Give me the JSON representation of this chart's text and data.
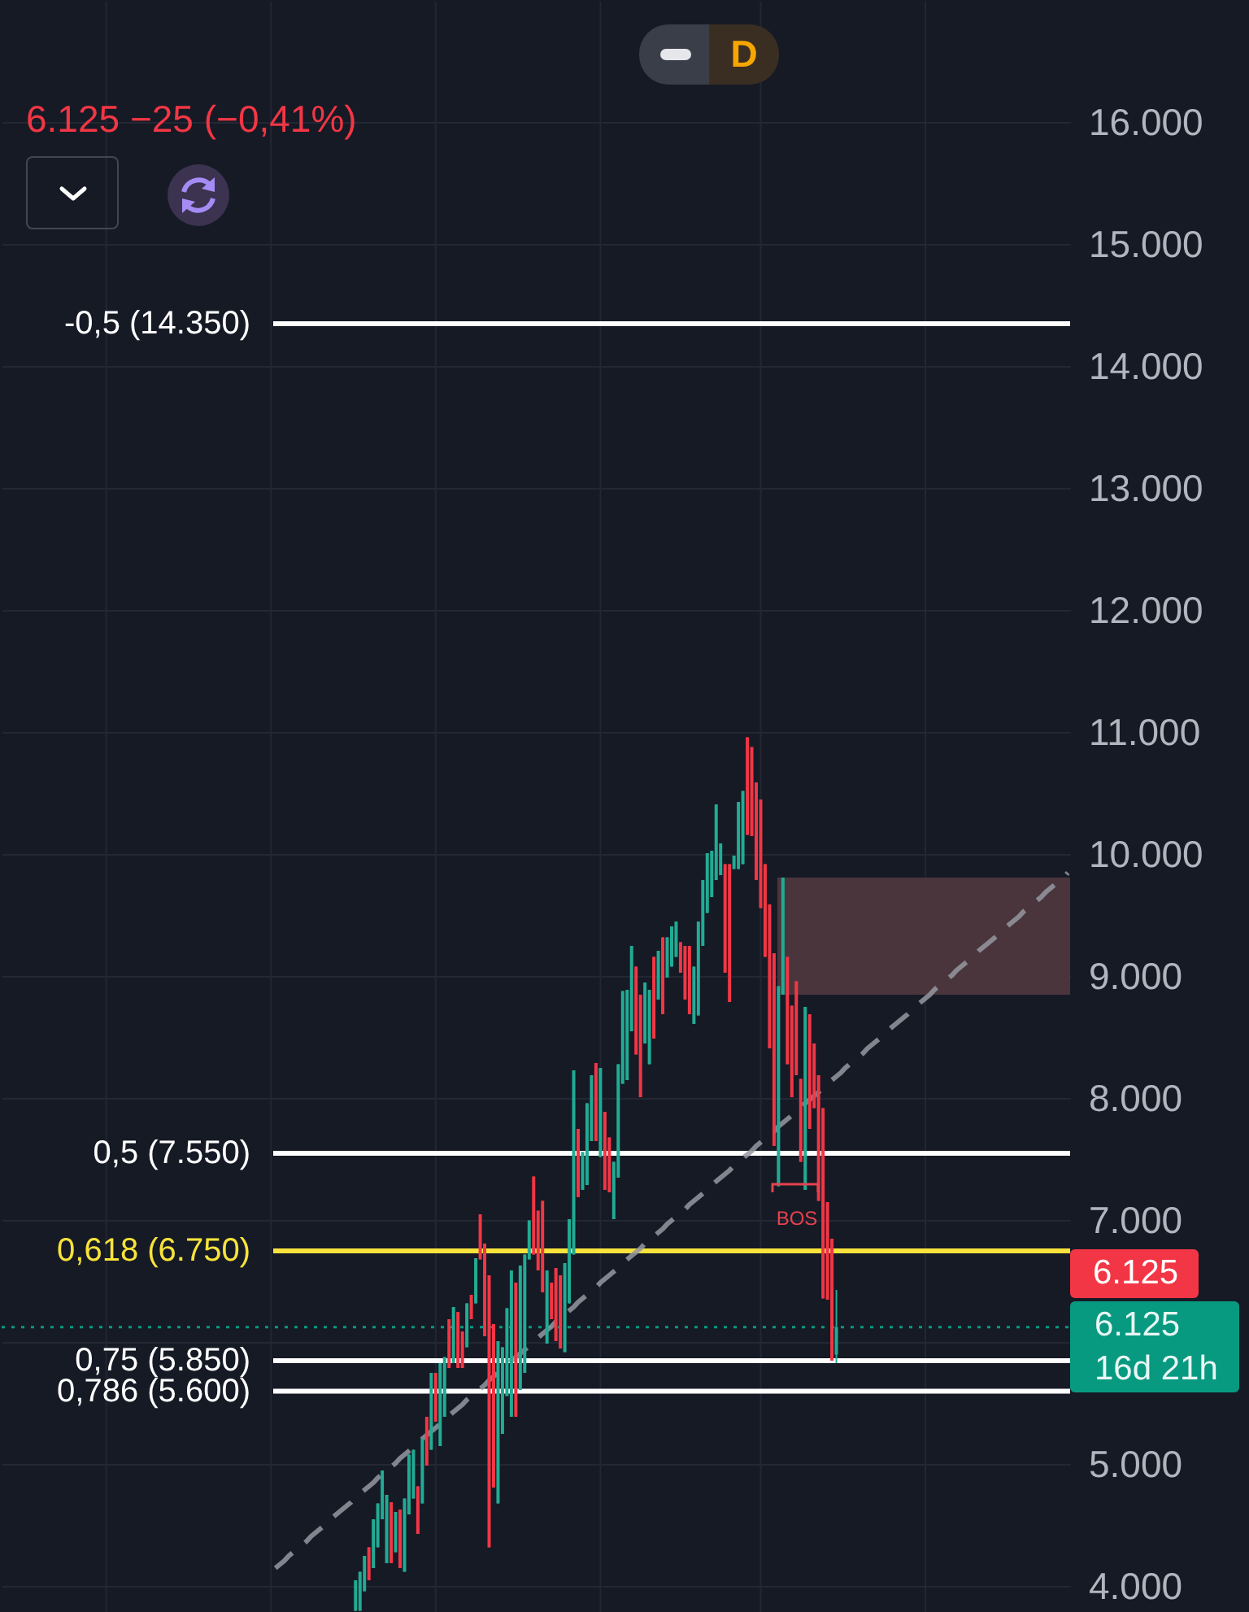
{
  "chart_data": {
    "type": "candlestick",
    "subtitle": "6.125 −25 (−0,41%)",
    "categories": [
      null,
      null,
      null,
      null,
      null,
      null,
      null,
      null,
      null,
      null,
      null,
      null,
      null,
      null,
      null,
      null,
      null,
      null,
      null,
      null,
      null,
      null,
      null,
      null,
      null,
      null,
      null,
      null,
      null,
      null,
      null,
      null,
      null,
      null,
      null,
      null,
      null,
      null,
      null,
      null,
      null,
      null,
      null,
      null,
      null,
      null,
      null,
      null,
      null,
      null,
      null,
      null,
      null,
      null,
      null,
      null,
      null,
      null,
      null,
      null,
      null,
      null,
      null,
      null,
      null,
      null,
      null,
      null,
      null,
      null,
      null,
      null,
      null,
      null,
      null,
      null,
      null,
      null,
      null,
      null,
      null,
      null,
      null,
      null,
      null,
      null,
      null,
      null,
      null,
      null,
      null,
      null,
      null,
      null,
      null,
      null,
      null,
      null,
      null,
      null,
      null,
      null,
      null,
      null,
      null,
      null,
      null,
      null,
      null,
      null,
      null,
      null,
      null,
      null,
      null,
      null,
      null,
      null,
      null,
      null,
      null,
      null,
      null,
      null,
      null,
      null,
      null,
      null,
      null,
      null,
      null,
      null,
      null,
      null,
      null,
      null,
      null,
      null,
      null,
      null,
      null,
      null,
      null,
      null,
      null,
      null,
      null,
      null,
      null,
      null,
      null,
      null,
      null,
      null,
      null,
      null,
      null,
      null,
      null,
      null,
      null,
      null,
      null,
      null,
      null,
      null,
      null,
      null,
      null,
      null,
      null,
      null,
      null,
      null,
      null,
      null,
      null,
      null,
      null,
      null,
      null,
      null,
      null,
      null,
      null,
      null,
      null,
      null,
      null,
      null,
      null,
      null,
      null,
      null,
      null,
      null,
      null,
      null,
      null,
      null,
      null,
      null,
      null,
      null,
      null,
      null,
      null,
      null,
      null,
      null,
      null,
      null,
      null,
      null,
      null,
      null,
      null,
      null,
      null,
      null,
      null,
      null,
      null,
      null,
      null,
      null,
      null,
      null,
      null,
      null,
      null,
      null,
      null,
      null,
      null,
      null,
      null,
      null,
      null,
      null
    ],
    "ohlc": [
      null,
      null,
      null,
      null,
      null,
      null,
      null,
      null,
      null,
      null,
      null,
      null,
      null,
      null,
      null,
      null,
      null,
      null,
      null,
      null,
      null,
      null,
      null,
      null,
      null,
      null,
      null,
      null,
      null,
      null,
      null,
      null,
      null,
      null,
      null,
      null,
      null,
      null,
      null,
      null,
      null,
      null,
      null,
      null,
      null,
      null,
      null,
      null,
      null,
      null,
      null,
      null,
      null,
      null,
      null,
      null,
      null,
      null,
      null,
      null,
      null,
      null,
      null,
      null,
      null,
      null,
      null,
      null,
      null,
      null,
      null,
      null,
      null,
      null,
      null,
      null,
      null,
      null,
      null,
      [
        3800,
        4050,
        3800,
        4050
      ],
      [
        3800,
        4120,
        3800,
        4120
      ],
      [
        3960,
        4250,
        3960,
        4250
      ],
      [
        4320,
        4320,
        4050,
        4050
      ],
      [
        4150,
        4550,
        4150,
        4550
      ],
      [
        4320,
        4680,
        4320,
        4680
      ],
      [
        4550,
        4950,
        4550,
        4950
      ],
      [
        4190,
        4750,
        4190,
        4750
      ],
      [
        4690,
        4690,
        4190,
        4190
      ],
      [
        4280,
        4610,
        4280,
        4610
      ],
      [
        4630,
        4630,
        4150,
        4150
      ],
      [
        4120,
        4720,
        4120,
        4720
      ],
      [
        4590,
        5080,
        4590,
        5080
      ],
      [
        4720,
        5120,
        4720,
        5120
      ],
      [
        4820,
        4820,
        4430,
        4430
      ],
      [
        4680,
        5210,
        4680,
        5210
      ],
      [
        5390,
        5390,
        4990,
        4990
      ],
      [
        5120,
        5750,
        5120,
        5750
      ],
      [
        5750,
        5750,
        5350,
        5350
      ],
      [
        5150,
        5830,
        5150,
        5830
      ],
      [
        5390,
        5880,
        5390,
        5880
      ],
      [
        6190,
        6190,
        5790,
        5790
      ],
      [
        5830,
        6290,
        5830,
        6290
      ],
      [
        6250,
        6250,
        5790,
        5790
      ],
      [
        6090,
        6090,
        5790,
        5790
      ],
      [
        5960,
        6320,
        5960,
        6320
      ],
      [
        6390,
        6390,
        6190,
        6190
      ],
      [
        6320,
        6690,
        6320,
        6690
      ],
      [
        7050,
        7050,
        6680,
        6680
      ],
      [
        6810,
        6810,
        6050,
        6050
      ],
      [
        6550,
        6550,
        4320,
        4320
      ],
      [
        6150,
        6150,
        4810,
        4810
      ],
      [
        4680,
        6010,
        4680,
        6010
      ],
      [
        5250,
        5960,
        5250,
        5960
      ],
      [
        5560,
        6280,
        5560,
        6280
      ],
      [
        5390,
        6590,
        5390,
        6590
      ],
      [
        6490,
        6490,
        5390,
        5390
      ],
      [
        5610,
        6630,
        5610,
        6630
      ],
      [
        5750,
        6720,
        5750,
        6720
      ],
      [
        6680,
        7000,
        6680,
        7000
      ],
      [
        7360,
        7360,
        6720,
        6720
      ],
      [
        7080,
        7080,
        6590,
        6590
      ],
      [
        7160,
        7160,
        6410,
        6410
      ],
      [
        5990,
        6590,
        5990,
        6590
      ],
      [
        6490,
        6490,
        6190,
        6190
      ],
      [
        6610,
        6610,
        6010,
        6010
      ],
      [
        6550,
        6550,
        5950,
        5950
      ],
      [
        5920,
        6650,
        5920,
        6650
      ],
      [
        6320,
        7010,
        6320,
        7010
      ],
      [
        6720,
        8230,
        6720,
        8230
      ],
      [
        7750,
        7750,
        7190,
        7190
      ],
      [
        7250,
        7560,
        7250,
        7560
      ],
      [
        7290,
        7960,
        7290,
        7960
      ],
      [
        7650,
        8190,
        7650,
        8190
      ],
      [
        8290,
        8290,
        7650,
        7650
      ],
      [
        7520,
        8250,
        7520,
        8250
      ],
      [
        7890,
        7890,
        7250,
        7250
      ],
      [
        7680,
        7680,
        7230,
        7230
      ],
      [
        7010,
        7480,
        7010,
        7480
      ],
      [
        7350,
        8280,
        7350,
        8280
      ],
      [
        8120,
        8880,
        8120,
        8880
      ],
      [
        8150,
        8890,
        8150,
        8890
      ],
      [
        8550,
        9250,
        8550,
        9250
      ],
      [
        9080,
        9080,
        8360,
        8360
      ],
      [
        8850,
        8850,
        8010,
        8010
      ],
      [
        8450,
        8950,
        8450,
        8950
      ],
      [
        8280,
        8890,
        8280,
        8890
      ],
      [
        9160,
        9160,
        8490,
        8490
      ],
      [
        8810,
        9210,
        8810,
        9210
      ],
      [
        9320,
        9320,
        8690,
        8690
      ],
      [
        8990,
        9320,
        8990,
        9320
      ],
      [
        9080,
        9410,
        9080,
        9410
      ],
      [
        9160,
        9450,
        9160,
        9450
      ],
      [
        9280,
        9280,
        9030,
        9030
      ],
      [
        9250,
        9250,
        8810,
        8810
      ],
      [
        9250,
        9250,
        8690,
        8690
      ],
      [
        8610,
        9080,
        8610,
        9080
      ],
      [
        8680,
        9450,
        8680,
        9450
      ],
      [
        9250,
        9790,
        9250,
        9790
      ],
      [
        9520,
        10010,
        9520,
        10010
      ],
      [
        9650,
        10030,
        9650,
        10030
      ],
      [
        9790,
        10410,
        9790,
        10410
      ],
      [
        9830,
        10090,
        9830,
        10090
      ],
      [
        9920,
        9920,
        9030,
        9030
      ],
      [
        9920,
        9920,
        8790,
        8790
      ],
      [
        9880,
        9990,
        9880,
        9990
      ],
      [
        9880,
        10430,
        9880,
        10430
      ],
      [
        9920,
        10520,
        9920,
        10520
      ],
      [
        10960,
        10960,
        10160,
        10160
      ],
      [
        10880,
        10880,
        10150,
        10150
      ],
      [
        10590,
        10590,
        9790,
        9790
      ],
      [
        10450,
        10450,
        9560,
        9560
      ],
      [
        9920,
        9920,
        9160,
        9160
      ],
      [
        9590,
        9590,
        8410,
        8410
      ],
      [
        9190,
        9190,
        7610,
        7610
      ],
      [
        7280,
        8920,
        7280,
        8920
      ],
      [
        8850,
        9810,
        8850,
        9810
      ],
      [
        9160,
        9160,
        8280,
        8280
      ],
      [
        8760,
        8760,
        8010,
        8010
      ],
      [
        8960,
        8960,
        8190,
        8190
      ],
      [
        8160,
        8160,
        7480,
        7480
      ],
      [
        7250,
        8750,
        7250,
        8750
      ],
      [
        8690,
        8690,
        7750,
        7750
      ],
      [
        8450,
        8450,
        7920,
        7920
      ],
      [
        8190,
        8190,
        7160,
        7160
      ],
      [
        7920,
        7920,
        6360,
        6360
      ],
      [
        7150,
        7150,
        6350,
        6350
      ],
      [
        6850,
        6850,
        5850,
        5850
      ],
      [
        5900,
        6430,
        5830,
        6125
      ],
      null,
      null,
      null,
      null,
      null,
      null,
      null,
      null,
      null,
      null,
      null,
      null,
      null,
      null,
      null,
      null,
      null,
      null,
      null,
      null,
      null,
      null,
      null,
      null,
      null,
      null,
      null,
      null,
      null,
      null,
      null,
      null,
      null,
      null,
      null,
      null,
      null,
      null,
      null,
      null,
      null,
      null,
      null,
      null,
      null,
      null,
      null,
      null,
      null,
      null,
      null,
      null
    ],
    "colors": [
      null,
      null,
      null,
      null,
      null,
      null,
      null,
      null,
      null,
      null,
      null,
      null,
      null,
      null,
      null,
      null,
      null,
      null,
      null,
      null,
      null,
      null,
      null,
      null,
      null,
      null,
      null,
      null,
      null,
      null,
      null,
      null,
      null,
      null,
      null,
      null,
      null,
      null,
      null,
      null,
      null,
      null,
      null,
      null,
      null,
      null,
      null,
      null,
      null,
      null,
      null,
      null,
      null,
      null,
      null,
      null,
      null,
      null,
      null,
      null,
      null,
      null,
      null,
      null,
      null,
      null,
      null,
      null,
      null,
      null,
      null,
      null,
      null,
      null,
      null,
      null,
      null,
      null,
      null,
      "#22ab94",
      "#22ab94",
      "#22ab94",
      "#f23645",
      "#22ab94",
      "#22ab94",
      "#22ab94",
      "#22ab94",
      "#f23645",
      "#22ab94",
      "#f23645",
      "#22ab94",
      "#22ab94",
      "#22ab94",
      "#f23645",
      "#22ab94",
      "#f23645",
      "#22ab94",
      "#f23645",
      "#22ab94",
      "#22ab94",
      "#f23645",
      "#22ab94",
      "#f23645",
      "#f23645",
      "#22ab94",
      "#f23645",
      "#22ab94",
      "#f23645",
      "#f23645",
      "#f23645",
      "#f23645",
      "#22ab94",
      "#22ab94",
      "#22ab94",
      "#22ab94",
      "#f23645",
      "#22ab94",
      "#22ab94",
      "#22ab94",
      "#f23645",
      "#f23645",
      "#f23645",
      "#22ab94",
      "#f23645",
      "#f23645",
      "#f23645",
      "#22ab94",
      "#22ab94",
      "#22ab94",
      "#f23645",
      "#22ab94",
      "#22ab94",
      "#22ab94",
      "#f23645",
      "#22ab94",
      "#f23645",
      "#f23645",
      "#22ab94",
      "#22ab94",
      "#22ab94",
      "#22ab94",
      "#22ab94",
      "#f23645",
      "#f23645",
      "#22ab94",
      "#22ab94",
      "#f23645",
      "#22ab94",
      "#f23645",
      "#22ab94",
      "#22ab94",
      "#22ab94",
      "#f23645",
      "#f23645",
      "#f23645",
      "#22ab94",
      "#22ab94",
      "#22ab94",
      "#22ab94",
      "#22ab94",
      "#22ab94",
      "#22ab94",
      "#f23645",
      "#f23645",
      "#22ab94",
      "#22ab94",
      "#22ab94",
      "#f23645",
      "#f23645",
      "#f23645",
      "#f23645",
      "#f23645",
      "#f23645",
      "#f23645",
      "#22ab94",
      "#22ab94",
      "#f23645",
      "#f23645",
      "#f23645",
      "#f23645",
      "#22ab94",
      "#f23645",
      "#f23645",
      "#f23645",
      "#f23645",
      "#f23645",
      "#f23645",
      "#22ab94",
      null,
      null,
      null,
      null,
      null,
      null,
      null,
      null,
      null,
      null,
      null,
      null,
      null,
      null,
      null,
      null,
      null,
      null,
      null,
      null,
      null,
      null,
      null,
      null,
      null,
      null,
      null,
      null,
      null,
      null,
      null,
      null,
      null,
      null,
      null,
      null,
      null,
      null,
      null,
      null,
      null,
      null,
      null,
      null,
      null,
      null,
      null,
      null,
      null,
      null,
      null,
      null
    ],
    "series": [
      {
        "type": "line",
        "color": "#9598a1",
        "line_style": "dashed",
        "values": [
          null,
          null,
          null,
          null,
          null,
          null,
          null,
          null,
          null,
          null,
          null,
          null,
          null,
          null,
          null,
          null,
          null,
          null,
          null,
          null,
          null,
          null,
          null,
          null,
          null,
          null,
          null,
          null,
          null,
          null,
          null,
          null,
          null,
          null,
          null,
          null,
          null,
          null,
          null,
          null,
          null,
          null,
          null,
          null,
          null,
          null,
          null,
          null,
          null,
          null,
          null,
          null,
          null,
          null,
          null,
          null,
          null,
          null,
          null,
          null,
          null,
          4150,
          4180,
          4210,
          4250,
          4280,
          4310,
          4340,
          4370,
          4410,
          4440,
          4470,
          4500,
          4530,
          4570,
          4600,
          4630,
          4660,
          4690,
          4730,
          4760,
          4790,
          4820,
          4850,
          4890,
          4920,
          4950,
          4980,
          5010,
          5050,
          5080,
          5110,
          5140,
          5170,
          5210,
          5240,
          5270,
          5300,
          5330,
          5370,
          5400,
          5430,
          5460,
          5490,
          5530,
          5560,
          5590,
          5620,
          5650,
          5690,
          5720,
          5750,
          5780,
          5810,
          5850,
          5880,
          5910,
          5940,
          5970,
          6010,
          6040,
          6070,
          6100,
          6130,
          6170,
          6200,
          6230,
          6260,
          6290,
          6330,
          6360,
          6390,
          6420,
          6450,
          6490,
          6520,
          6550,
          6580,
          6610,
          6650,
          6680,
          6710,
          6740,
          6770,
          6810,
          6840,
          6870,
          6900,
          6930,
          6970,
          7000,
          7030,
          7060,
          7090,
          7130,
          7160,
          7190,
          7220,
          7250,
          7290,
          7320,
          7350,
          7380,
          7410,
          7450,
          7480,
          7510,
          7540,
          7570,
          7610,
          7640,
          7670,
          7700,
          7730,
          7770,
          7800,
          7830,
          7860,
          7890,
          7930,
          7960,
          7990,
          8020,
          8050,
          8090,
          8120,
          8150,
          8180,
          8210,
          8250,
          8280,
          8310,
          8340,
          8370,
          8410,
          8440,
          8470,
          8500,
          8530,
          8570,
          8600,
          8630,
          8660,
          8690,
          8730,
          8760,
          8790,
          8820,
          8850,
          8890,
          8920,
          8950,
          8980,
          9010,
          9050,
          9080,
          9110,
          9140,
          9170,
          9210,
          9240,
          9270,
          9300,
          9330,
          9370,
          9400,
          9430,
          9460,
          9490,
          9530,
          9560,
          9590,
          9620,
          9650,
          9690,
          9720,
          9750,
          9780,
          9810,
          9850
        ]
      }
    ],
    "ylim": [
      3790,
      16990
    ],
    "yticks": [
      {
        "value": 4000,
        "label": "4.000"
      },
      {
        "value": 5000,
        "label": "5.000"
      },
      {
        "value": 6000,
        "label": null
      },
      {
        "value": 7000,
        "label": "7.000"
      },
      {
        "value": 8000,
        "label": "8.000"
      },
      {
        "value": 9000,
        "label": "9.000"
      },
      {
        "value": 10000,
        "label": "10.000"
      },
      {
        "value": 11000,
        "label": "11.000"
      },
      {
        "value": 12000,
        "label": "12.000"
      },
      {
        "value": 13000,
        "label": "13.000"
      },
      {
        "value": 14000,
        "label": "14.000"
      },
      {
        "value": 15000,
        "label": "15.000"
      },
      {
        "value": 16000,
        "label": "16.000"
      }
    ],
    "ref_lines": [
      {
        "axis": "y",
        "value": 14350,
        "label": "-0,5 (14.350)",
        "color": "#ffffff"
      },
      {
        "axis": "y",
        "value": 7550,
        "label": "0,5 (7.550)",
        "color": "#ffffff"
      },
      {
        "axis": "y",
        "value": 6750,
        "label": "0,618 (6.750)",
        "color": "#f7e33b"
      },
      {
        "axis": "y",
        "value": 5850,
        "label": "0,75 (5.850)",
        "color": "#ffffff"
      },
      {
        "axis": "y",
        "value": 5600,
        "label": "0,786 (5.600)",
        "color": "#ffffff"
      },
      {
        "axis": "y",
        "value": 6125,
        "color": "#089981",
        "line_style": "dotted"
      }
    ],
    "bands": [
      {
        "axis": "y",
        "from": 8850,
        "to": 9810,
        "color": "#4a353c"
      }
    ],
    "annotations": [
      "D",
      {
        "text": "BOS",
        "y": 7280
      },
      "6.125",
      "6.125",
      "16d 21h"
    ],
    "grid": true,
    "tick_labels": "y"
  }
}
